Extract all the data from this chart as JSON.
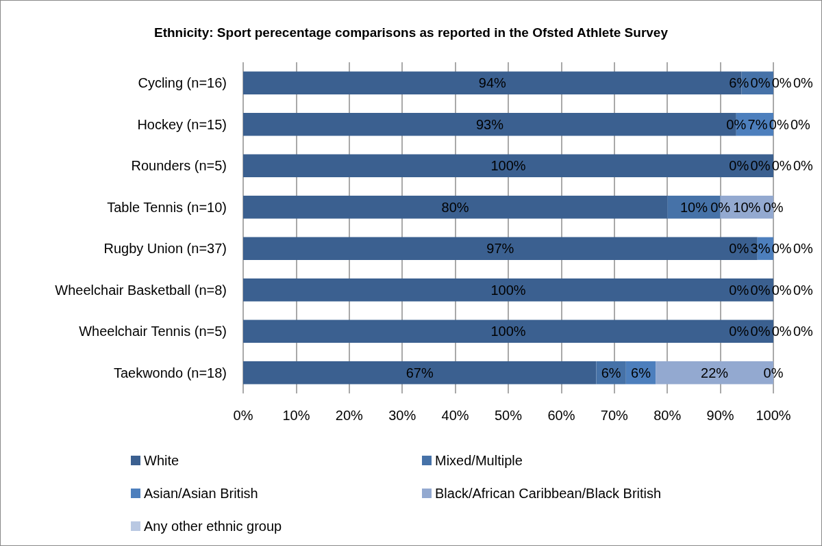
{
  "chart_data": {
    "type": "bar",
    "orientation": "horizontal",
    "stacked": true,
    "title": "Ethnicity: Sport perecentage comparisons as reported in the Ofsted Athlete Survey",
    "categories": [
      "Cycling (n=16)",
      "Hockey (n=15)",
      "Rounders (n=5)",
      "Table Tennis (n=10)",
      "Rugby Union (n=37)",
      "Wheelchair Basketball (n=8)",
      "Wheelchair Tennis (n=5)",
      "Taekwondo (n=18)"
    ],
    "series": [
      {
        "name": "White",
        "color": "#3b6090",
        "values": [
          94,
          93,
          100,
          80,
          97,
          100,
          100,
          66.6
        ],
        "value_labels": [
          "94%",
          "93%",
          "100%",
          "80%",
          "97%",
          "100%",
          "100%",
          "67%"
        ]
      },
      {
        "name": "Mixed/Multiple",
        "color": "#4672a8",
        "values": [
          6,
          0,
          0,
          10,
          0,
          0,
          0,
          5.6
        ],
        "value_labels": [
          "6%",
          "0%",
          "0%",
          "10%",
          "0%",
          "0%",
          "0%",
          "6%"
        ]
      },
      {
        "name": "Asian/Asian British",
        "color": "#4d7fbd",
        "values": [
          0,
          7,
          0,
          0,
          3,
          0,
          0,
          5.6
        ],
        "value_labels": [
          "0%",
          "7%",
          "0%",
          "0%",
          "3%",
          "0%",
          "0%",
          "6%"
        ]
      },
      {
        "name": "Black/African Caribbean/Black British",
        "color": "#93a9d0",
        "values": [
          0,
          0,
          0,
          10,
          0,
          0,
          0,
          22.2
        ],
        "value_labels": [
          "0%",
          "0%",
          "0%",
          "10%",
          "0%",
          "0%",
          "0%",
          "22%"
        ]
      },
      {
        "name": "Any other ethnic group",
        "color": "#b9c8e2",
        "values": [
          0,
          0,
          0,
          0,
          0,
          0,
          0,
          0
        ],
        "value_labels": [
          "0%",
          "0%",
          "0%",
          "0%",
          "0%",
          "0%",
          "0%",
          "0%"
        ]
      }
    ],
    "xlim": [
      0,
      100
    ],
    "xticks": [
      {
        "value": 0,
        "label": "0%"
      },
      {
        "value": 10,
        "label": "10%"
      },
      {
        "value": 20,
        "label": "20%"
      },
      {
        "value": 30,
        "label": "30%"
      },
      {
        "value": 40,
        "label": "40%"
      },
      {
        "value": 50,
        "label": "50%"
      },
      {
        "value": 60,
        "label": "60%"
      },
      {
        "value": 70,
        "label": "70%"
      },
      {
        "value": 80,
        "label": "80%"
      },
      {
        "value": 90,
        "label": "90%"
      },
      {
        "value": 100,
        "label": "100%"
      }
    ],
    "grid": "x",
    "legend": "bottom"
  }
}
